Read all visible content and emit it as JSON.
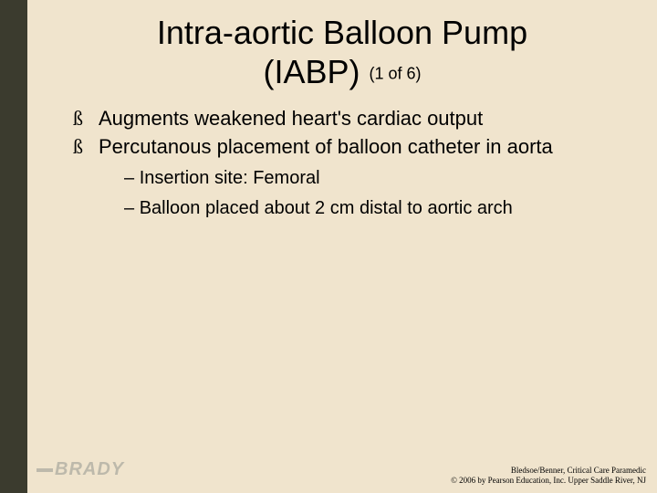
{
  "slide": {
    "background_color": "#f0e4cd",
    "sidebar_color": "#3b3b2e",
    "title_line1": "Intra-aortic Balloon Pump",
    "title_line2": "(IABP)",
    "pager": "(1 of 6)",
    "title_fontsize": 36,
    "bullets_level1": [
      "Augments weakened heart's cardiac output",
      "Percutanous placement of balloon catheter in aorta"
    ],
    "bullets_level2": [
      "Insertion site: Femoral",
      "Balloon placed about 2 cm distal to aortic arch"
    ],
    "level1_fontsize": 22,
    "level2_fontsize": 20,
    "level1_marker": "↙",
    "level2_marker": "–",
    "footer_line1": "Bledsoe/Benner, Critical Care Paramedic",
    "footer_line2": "© 2006 by Pearson Education, Inc. Upper Saddle River, NJ",
    "brand": "BRADY",
    "brand_color": "#bdb9ab"
  }
}
